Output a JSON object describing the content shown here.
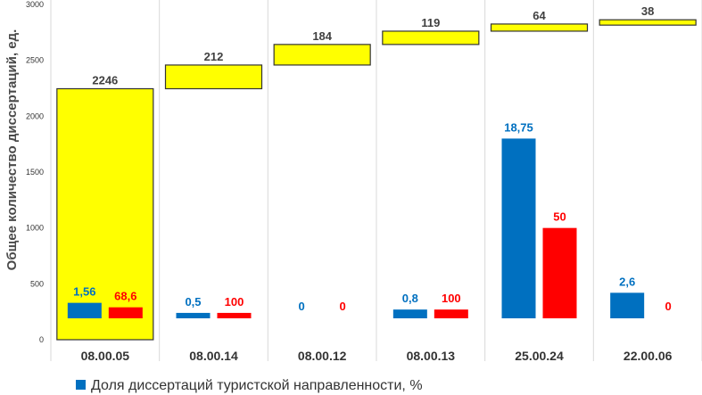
{
  "chart_data": {
    "type": "bar",
    "ylabel": "Общее количество диссертаций, ед.",
    "ylim": [
      0,
      3000
    ],
    "yticks": [
      0,
      500,
      1000,
      1500,
      2000,
      2500,
      3000
    ],
    "grid": "vertical separators between categories",
    "categories": [
      "08.00.05",
      "08.00.14",
      "08.00.12",
      "08.00.13",
      "25.00.24",
      "22.00.06"
    ],
    "total_dissertations": {
      "color": "#ffff00",
      "values": [
        2246,
        212,
        184,
        119,
        64,
        38
      ],
      "labels": [
        "2246",
        "212",
        "184",
        "119",
        "64",
        "38"
      ],
      "stacked_top_bands": [
        [
          0,
          2246
        ],
        [
          2246,
          2458
        ],
        [
          2458,
          2642
        ],
        [
          2642,
          2761
        ],
        [
          2761,
          2825
        ],
        [
          2825,
          2863
        ]
      ]
    },
    "series": [
      {
        "name": "Доля диссертаций туристской направленности, %",
        "color": "#0070c0",
        "values": [
          1.56,
          0.5,
          0,
          0.8,
          18.75,
          2.6
        ],
        "labels": [
          "1,56",
          "0,5",
          "0",
          "0,8",
          "18,75",
          "2,6"
        ],
        "bar_tops_axis": [
          330,
          240,
          null,
          270,
          1800,
          420
        ]
      },
      {
        "color": "#ff0000",
        "values": [
          68.6,
          100,
          0,
          100,
          50,
          0
        ],
        "labels": [
          "68,6",
          "100",
          "0",
          "100",
          "50",
          "0"
        ],
        "bar_tops_axis": [
          290,
          240,
          null,
          270,
          1000,
          null
        ]
      }
    ],
    "legend": {
      "position": "bottom",
      "entries": [
        {
          "label": "Доля диссертаций туристской направленности, %",
          "color": "#0070c0"
        }
      ]
    }
  }
}
